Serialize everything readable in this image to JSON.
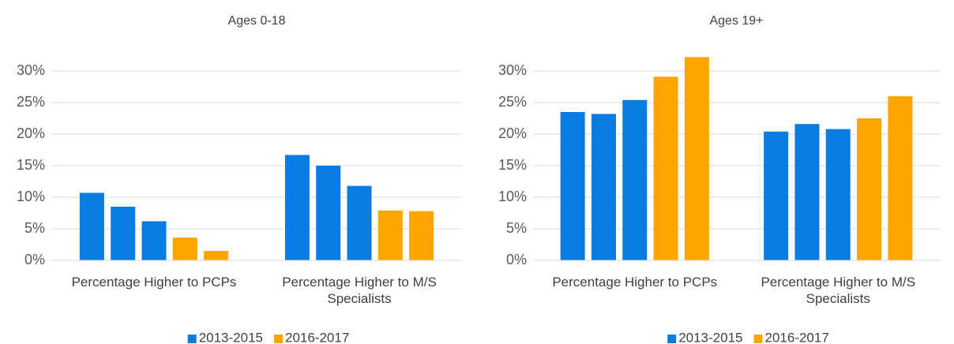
{
  "chart_data": [
    {
      "type": "bar",
      "title": "Ages 0-18",
      "categories": [
        "Percentage Higher to PCPs",
        "Percentage Higher to M/S Specialists"
      ],
      "series": [
        {
          "name": "2013-2015",
          "color": "#0a7be0",
          "values": [
            [
              10.7,
              8.5,
              6.2
            ],
            [
              16.7,
              15.0,
              11.8
            ]
          ]
        },
        {
          "name": "2016-2017",
          "color": "#ffa500",
          "values": [
            [
              3.6,
              1.5
            ],
            [
              7.9,
              7.8
            ]
          ]
        }
      ],
      "ylim": [
        0,
        30
      ],
      "yticks": [
        {
          "value": 0,
          "label": "0%"
        },
        {
          "value": 5,
          "label": "5%"
        },
        {
          "value": 10,
          "label": "10%"
        },
        {
          "value": 15,
          "label": "15%"
        },
        {
          "value": 20,
          "label": "20%"
        },
        {
          "value": 25,
          "label": "25%"
        },
        {
          "value": 30,
          "label": "30%"
        }
      ],
      "grid": true,
      "legend": "bottom"
    },
    {
      "type": "bar",
      "title": "Ages 19+",
      "categories": [
        "Percentage Higher to PCPs",
        "Percentage Higher to M/S Specialists"
      ],
      "series": [
        {
          "name": "2013-2015",
          "color": "#0a7be0",
          "values": [
            [
              23.5,
              23.2,
              25.4
            ],
            [
              20.4,
              21.6,
              20.8
            ]
          ]
        },
        {
          "name": "2016-2017",
          "color": "#ffa500",
          "values": [
            [
              29.1,
              32.2
            ],
            [
              22.5,
              26.0
            ]
          ]
        }
      ],
      "ylim": [
        0,
        30
      ],
      "yticks": [
        {
          "value": 0,
          "label": "0%"
        },
        {
          "value": 5,
          "label": "5%"
        },
        {
          "value": 10,
          "label": "10%"
        },
        {
          "value": 15,
          "label": "15%"
        },
        {
          "value": 20,
          "label": "20%"
        },
        {
          "value": 25,
          "label": "25%"
        },
        {
          "value": 30,
          "label": "30%"
        }
      ],
      "grid": true,
      "legend": "bottom"
    }
  ]
}
